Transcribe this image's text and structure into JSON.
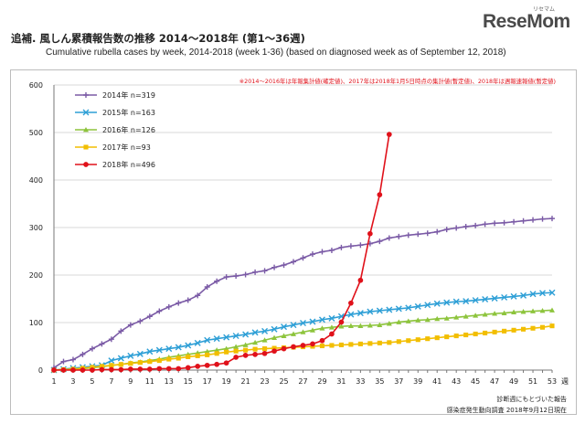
{
  "header": {
    "logo": "ReseMom",
    "logo_small": "リセマム",
    "title": "追補. 風しん累積報告数の推移  2014～2018年 (第1～36週)",
    "subtitle": "Cumulative rubella cases by week, 2014-2018 (week 1-36)  (based on diagnosed week as of September 12, 2018)"
  },
  "chart_data": {
    "type": "line",
    "note": "※2014～2016年は年報集計値(確定値)、2017年は2018年1月5日時点の集計値(暫定値)、2018年は週報速報値(暫定値)",
    "xunit": "週",
    "ylim": [
      0,
      600
    ],
    "yticks": [
      0,
      100,
      200,
      300,
      400,
      500,
      600
    ],
    "xticks": [
      1,
      3,
      5,
      7,
      9,
      11,
      13,
      15,
      17,
      19,
      21,
      23,
      25,
      27,
      29,
      31,
      33,
      35,
      37,
      39,
      41,
      43,
      45,
      47,
      49,
      51,
      53
    ],
    "xlim": [
      1,
      53
    ],
    "grid": true,
    "legend_position": "top-left",
    "footer": [
      "診断週にもとづいた報告",
      "感染症発生動向調査 2018年9月12日現在"
    ],
    "series": [
      {
        "name": "2014年 n=319",
        "color": "#7b5ba6",
        "marker": "plus",
        "values": [
          5,
          18,
          22,
          33,
          45,
          55,
          65,
          82,
          95,
          103,
          113,
          124,
          133,
          141,
          147,
          157,
          175,
          187,
          196,
          198,
          201,
          206,
          209,
          216,
          221,
          228,
          236,
          244,
          249,
          252,
          258,
          261,
          263,
          266,
          271,
          278,
          281,
          284,
          286,
          288,
          291,
          296,
          299,
          302,
          304,
          307,
          309,
          310,
          312,
          314,
          316,
          318,
          319
        ]
      },
      {
        "name": "2015年 n=163",
        "color": "#2e9fd6",
        "marker": "x",
        "values": [
          0,
          2,
          4,
          6,
          8,
          10,
          20,
          25,
          30,
          34,
          39,
          42,
          45,
          48,
          52,
          57,
          63,
          66,
          69,
          72,
          75,
          79,
          82,
          86,
          91,
          95,
          99,
          102,
          106,
          109,
          113,
          117,
          120,
          123,
          125,
          127,
          129,
          131,
          134,
          137,
          140,
          142,
          144,
          145,
          147,
          149,
          151,
          153,
          155,
          157,
          160,
          162,
          163
        ]
      },
      {
        "name": "2016年 n=126",
        "color": "#8dc43c",
        "marker": "triangle",
        "values": [
          0,
          1,
          2,
          3,
          5,
          7,
          10,
          12,
          15,
          17,
          20,
          23,
          27,
          30,
          33,
          36,
          39,
          42,
          45,
          49,
          53,
          58,
          63,
          68,
          72,
          76,
          80,
          84,
          88,
          90,
          92,
          93,
          93,
          94,
          95,
          98,
          101,
          103,
          105,
          106,
          108,
          109,
          111,
          113,
          115,
          117,
          119,
          120,
          122,
          123,
          124,
          125,
          126
        ]
      },
      {
        "name": "2017年 n=93",
        "color": "#f2be00",
        "marker": "square",
        "values": [
          0,
          1,
          2,
          4,
          6,
          8,
          10,
          12,
          14,
          16,
          18,
          20,
          23,
          25,
          28,
          30,
          32,
          35,
          38,
          40,
          42,
          44,
          45,
          46,
          47,
          48,
          49,
          50,
          51,
          52,
          53,
          54,
          55,
          56,
          57,
          58,
          60,
          62,
          64,
          66,
          68,
          70,
          72,
          74,
          76,
          78,
          80,
          82,
          84,
          86,
          88,
          90,
          93
        ]
      },
      {
        "name": "2018年 n=496",
        "color": "#e0111a",
        "marker": "circle",
        "values": [
          0,
          0,
          0,
          0,
          0,
          1,
          1,
          1,
          2,
          2,
          2,
          3,
          3,
          3,
          5,
          8,
          10,
          12,
          15,
          27,
          31,
          33,
          35,
          40,
          45,
          49,
          52,
          55,
          62,
          76,
          101,
          141,
          189,
          287,
          369,
          496
        ]
      }
    ]
  }
}
